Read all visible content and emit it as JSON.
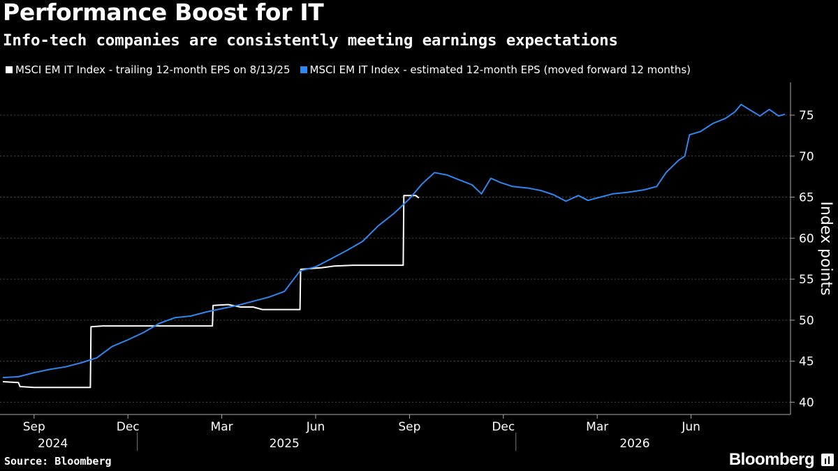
{
  "header": {
    "title": "Performance Boost for IT",
    "subtitle": "Info-tech companies are consistently meeting earnings expectations"
  },
  "legend": [
    {
      "label": "MSCI EM IT Index - trailing 12-month EPS on 8/13/25",
      "color": "#ffffff"
    },
    {
      "label": "MSCI EM IT Index - estimated 12-month EPS (moved forward 12 months)",
      "color": "#2e87f0"
    }
  ],
  "footer": {
    "source": "Source: Bloomberg",
    "brand": "Bloomberg"
  },
  "chart_data": {
    "type": "line",
    "title": "Performance Boost for IT",
    "xlabel": "",
    "ylabel": "Index points",
    "ylim": [
      38.5,
      79
    ],
    "y_ticks": [
      40,
      45,
      50,
      55,
      60,
      65,
      70,
      75
    ],
    "x_ticks": [
      "Sep",
      "Dec",
      "Mar",
      "Jun",
      "Sep",
      "Dec",
      "Mar",
      "Jun"
    ],
    "x_tick_months": [
      1,
      4,
      7,
      10,
      13,
      16,
      19,
      22
    ],
    "year_labels": [
      {
        "label": "2024",
        "center_month": 1.6
      },
      {
        "label": "2025",
        "center_month": 9.0
      },
      {
        "label": "2026",
        "center_month": 20.2
      }
    ],
    "year_dividers": [
      4.3,
      16.4
    ],
    "xlim": [
      0,
      25
    ],
    "x_unit": "months since 2024-08-01",
    "grid": true,
    "series": [
      {
        "name": "MSCI EM IT Index - trailing 12-month EPS on 8/13/25",
        "color": "#ffffff",
        "points": [
          [
            0,
            42.5
          ],
          [
            0.5,
            42.4
          ],
          [
            0.55,
            41.9
          ],
          [
            1.0,
            41.8
          ],
          [
            2.8,
            41.8
          ],
          [
            2.82,
            49.2
          ],
          [
            3.2,
            49.3
          ],
          [
            6.7,
            49.3
          ],
          [
            6.72,
            51.8
          ],
          [
            7.2,
            51.9
          ],
          [
            7.6,
            51.6
          ],
          [
            8.0,
            51.6
          ],
          [
            8.3,
            51.3
          ],
          [
            9.5,
            51.3
          ],
          [
            9.52,
            56.2
          ],
          [
            10.2,
            56.4
          ],
          [
            10.6,
            56.6
          ],
          [
            11.2,
            56.7
          ],
          [
            12.8,
            56.7
          ],
          [
            12.82,
            65.2
          ],
          [
            13.2,
            65.2
          ],
          [
            13.3,
            64.9
          ]
        ]
      },
      {
        "name": "MSCI EM IT Index - estimated 12-month EPS (moved forward 12 months)",
        "color": "#2e87f0",
        "points": [
          [
            0,
            43.0
          ],
          [
            0.5,
            43.1
          ],
          [
            1.0,
            43.6
          ],
          [
            1.5,
            44.0
          ],
          [
            2.0,
            44.3
          ],
          [
            2.5,
            44.8
          ],
          [
            3.0,
            45.4
          ],
          [
            3.5,
            46.8
          ],
          [
            4.0,
            47.6
          ],
          [
            4.5,
            48.5
          ],
          [
            5.0,
            49.6
          ],
          [
            5.5,
            50.3
          ],
          [
            6.0,
            50.5
          ],
          [
            6.5,
            51.0
          ],
          [
            7.0,
            51.4
          ],
          [
            7.5,
            51.8
          ],
          [
            8.0,
            52.3
          ],
          [
            8.5,
            52.8
          ],
          [
            9.0,
            53.5
          ],
          [
            9.5,
            56.0
          ],
          [
            10.0,
            56.5
          ],
          [
            10.5,
            57.5
          ],
          [
            11.0,
            58.5
          ],
          [
            11.5,
            59.6
          ],
          [
            12.0,
            61.5
          ],
          [
            12.5,
            63.0
          ],
          [
            13.0,
            64.8
          ],
          [
            13.4,
            66.6
          ],
          [
            13.8,
            68.0
          ],
          [
            14.2,
            67.7
          ],
          [
            14.6,
            67.1
          ],
          [
            15.0,
            66.5
          ],
          [
            15.3,
            65.4
          ],
          [
            15.6,
            67.3
          ],
          [
            15.9,
            66.8
          ],
          [
            16.3,
            66.3
          ],
          [
            16.8,
            66.1
          ],
          [
            17.2,
            65.8
          ],
          [
            17.6,
            65.3
          ],
          [
            18.0,
            64.5
          ],
          [
            18.4,
            65.2
          ],
          [
            18.7,
            64.6
          ],
          [
            19.1,
            65.0
          ],
          [
            19.5,
            65.4
          ],
          [
            20.0,
            65.6
          ],
          [
            20.5,
            65.9
          ],
          [
            20.9,
            66.3
          ],
          [
            21.2,
            68.0
          ],
          [
            21.6,
            69.5
          ],
          [
            21.8,
            70.0
          ],
          [
            21.95,
            72.6
          ],
          [
            22.3,
            73.0
          ],
          [
            22.7,
            74.0
          ],
          [
            23.1,
            74.6
          ],
          [
            23.4,
            75.4
          ],
          [
            23.6,
            76.3
          ],
          [
            23.9,
            75.6
          ],
          [
            24.2,
            74.9
          ],
          [
            24.5,
            75.7
          ],
          [
            24.8,
            74.9
          ],
          [
            25.0,
            75.1
          ]
        ]
      }
    ]
  }
}
